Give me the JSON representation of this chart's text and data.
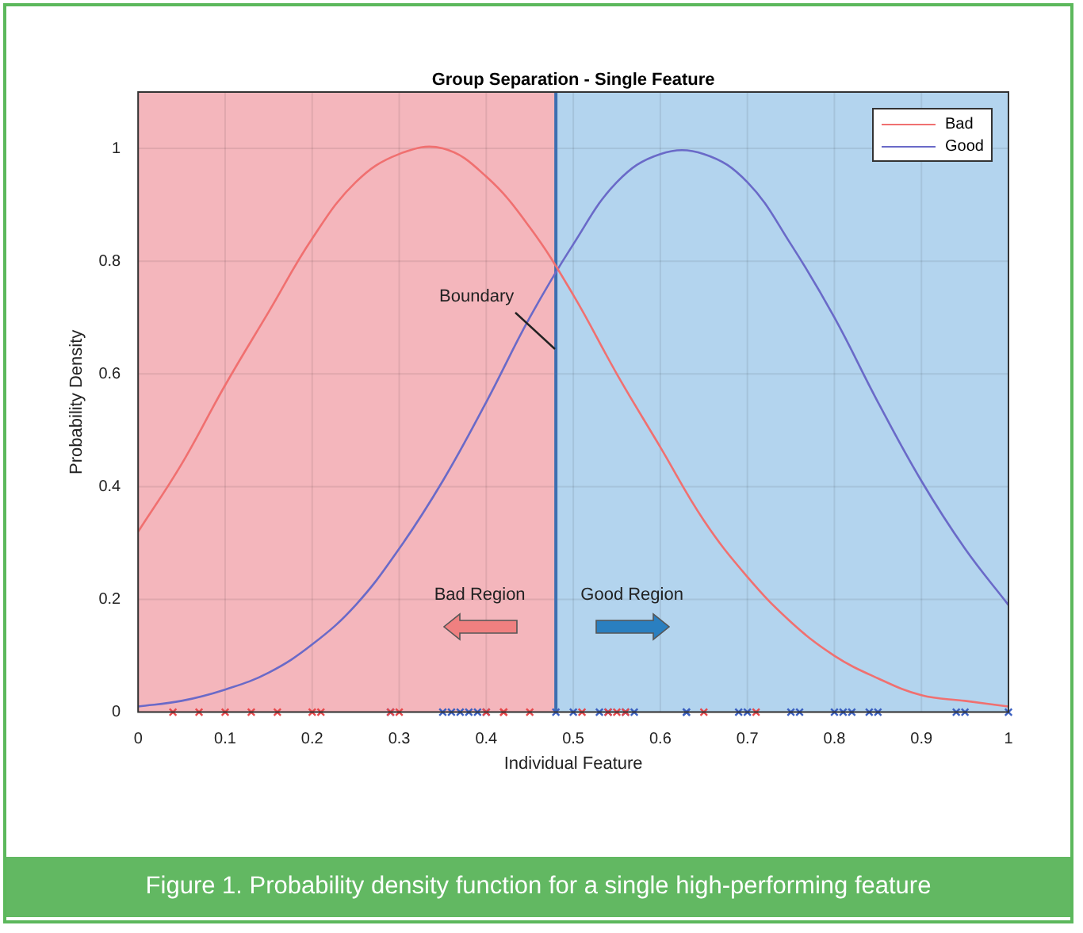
{
  "chart_data": {
    "type": "line",
    "title": "Group Separation - Single Feature",
    "xlabel": "Individual Feature",
    "ylabel": "Probability Density",
    "x": [
      0,
      0.05,
      0.1,
      0.15,
      0.2,
      0.25,
      0.3,
      0.35,
      0.4,
      0.45,
      0.5,
      0.55,
      0.6,
      0.65,
      0.7,
      0.75,
      0.8,
      0.85,
      0.9,
      0.95,
      1
    ],
    "series": [
      {
        "name": "Bad",
        "color": "#f07070",
        "values": [
          0.32,
          0.44,
          0.58,
          0.71,
          0.84,
          0.94,
          0.99,
          1.0,
          0.95,
          0.86,
          0.74,
          0.6,
          0.47,
          0.34,
          0.24,
          0.16,
          0.1,
          0.06,
          0.03,
          0.02,
          0.01
        ]
      },
      {
        "name": "Good",
        "color": "#6a6ac8",
        "values": [
          0.01,
          0.02,
          0.04,
          0.07,
          0.12,
          0.19,
          0.29,
          0.41,
          0.55,
          0.7,
          0.83,
          0.94,
          0.99,
          0.99,
          0.94,
          0.83,
          0.7,
          0.55,
          0.41,
          0.29,
          0.19
        ]
      },
      {
        "type": "scatter",
        "marker": "cross",
        "color": "#e8474a",
        "x": [
          0.04,
          0.07,
          0.1,
          0.13,
          0.16,
          0.2,
          0.21,
          0.29,
          0.3,
          0.4,
          0.42,
          0.42,
          0.45,
          0.51,
          0.54,
          0.55,
          0.56,
          0.65,
          0.71
        ],
        "values": [
          0,
          0,
          0,
          0,
          0,
          0,
          0,
          0,
          0,
          0,
          0,
          0,
          0,
          0,
          0,
          0,
          0,
          0,
          0
        ]
      },
      {
        "type": "scatter",
        "marker": "cross",
        "color": "#3a5fc0",
        "x": [
          0.29,
          0.35,
          0.36,
          0.37,
          0.38,
          0.39,
          0.4,
          0.48,
          0.5,
          0.53,
          0.54,
          0.56,
          0.57,
          0.63,
          0.63,
          0.69,
          0.7,
          0.75,
          0.76,
          0.8,
          0.81,
          0.82,
          0.84,
          0.85,
          0.94,
          0.95,
          1.0
        ],
        "values": [
          0,
          0,
          0,
          0,
          0,
          0,
          0,
          0,
          0,
          0,
          0,
          0,
          0,
          0,
          0,
          0,
          0,
          0,
          0,
          0,
          0,
          0,
          0,
          0,
          0,
          0,
          0
        ]
      }
    ],
    "xlim": [
      0,
      1
    ],
    "xticks": [
      0,
      0.1,
      0.2,
      0.3,
      0.4,
      0.5,
      0.6,
      0.7,
      0.8,
      0.9,
      1
    ],
    "ylim": [
      0,
      1.1
    ],
    "yticks": [
      0,
      0.2,
      0.4,
      0.6,
      0.8,
      1
    ],
    "bands": [
      {
        "axis": "x",
        "from": 0,
        "to": 0.48,
        "color": "#f4b6bc"
      },
      {
        "axis": "x",
        "from": 0.48,
        "to": 1,
        "color": "#b3d4ee"
      }
    ],
    "ref_lines": [
      {
        "axis": "x",
        "value": 0.48,
        "label": "Boundary",
        "color": "#3d6fb0"
      }
    ],
    "annotations": [
      "Bad Region",
      "Good Region",
      "Figure 1. Probability density function for a single high-performing feature"
    ],
    "grid": true,
    "legend": "top right"
  }
}
